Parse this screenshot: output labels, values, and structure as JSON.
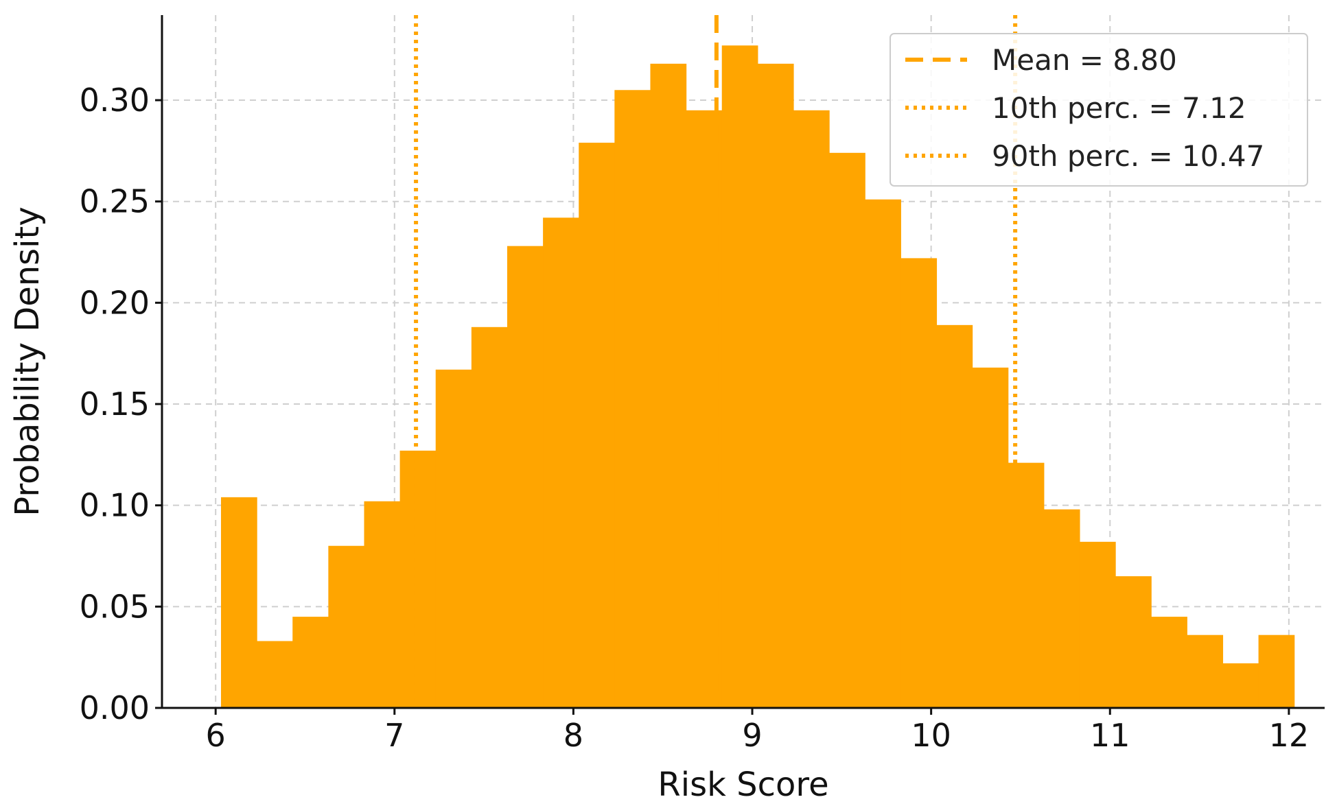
{
  "chart_data": {
    "type": "bar",
    "subtype": "histogram",
    "title": "",
    "xlabel": "Risk Score",
    "ylabel": "Probability Density",
    "xlim": [
      5.7,
      12.2
    ],
    "ylim": [
      0,
      0.342
    ],
    "xticks": [
      6,
      7,
      8,
      9,
      10,
      11,
      12
    ],
    "xtick_labels": [
      "6",
      "7",
      "8",
      "9",
      "10",
      "11",
      "12"
    ],
    "yticks": [
      0.0,
      0.05,
      0.1,
      0.15,
      0.2,
      0.25,
      0.3
    ],
    "ytick_labels": [
      "0.00",
      "0.05",
      "0.10",
      "0.15",
      "0.20",
      "0.25",
      "0.30"
    ],
    "grid": true,
    "legend_position": "top-right",
    "color": "#FFA500",
    "bins": {
      "edges": [
        6.03,
        6.23,
        6.43,
        6.63,
        6.83,
        7.03,
        7.23,
        7.43,
        7.63,
        7.83,
        8.03,
        8.23,
        8.43,
        8.63,
        8.83,
        9.03,
        9.23,
        9.43,
        9.63,
        9.83,
        10.03,
        10.23,
        10.43,
        10.63,
        10.83,
        11.03,
        11.23,
        11.43,
        11.63,
        11.83,
        12.03
      ],
      "density": [
        0.104,
        0.033,
        0.045,
        0.08,
        0.102,
        0.127,
        0.167,
        0.188,
        0.228,
        0.242,
        0.279,
        0.305,
        0.318,
        0.295,
        0.327,
        0.318,
        0.295,
        0.274,
        0.251,
        0.222,
        0.189,
        0.168,
        0.121,
        0.098,
        0.082,
        0.065,
        0.045,
        0.036,
        0.022,
        0.036
      ]
    },
    "reference_lines": [
      {
        "label": "Mean = 8.80",
        "x": 8.8,
        "style": "dashed",
        "color": "#FFA500"
      },
      {
        "label": "10th perc. = 7.12",
        "x": 7.12,
        "style": "dotted",
        "color": "#FFA500"
      },
      {
        "label": "90th perc. = 10.47",
        "x": 10.47,
        "style": "dotted",
        "color": "#FFA500"
      }
    ]
  }
}
